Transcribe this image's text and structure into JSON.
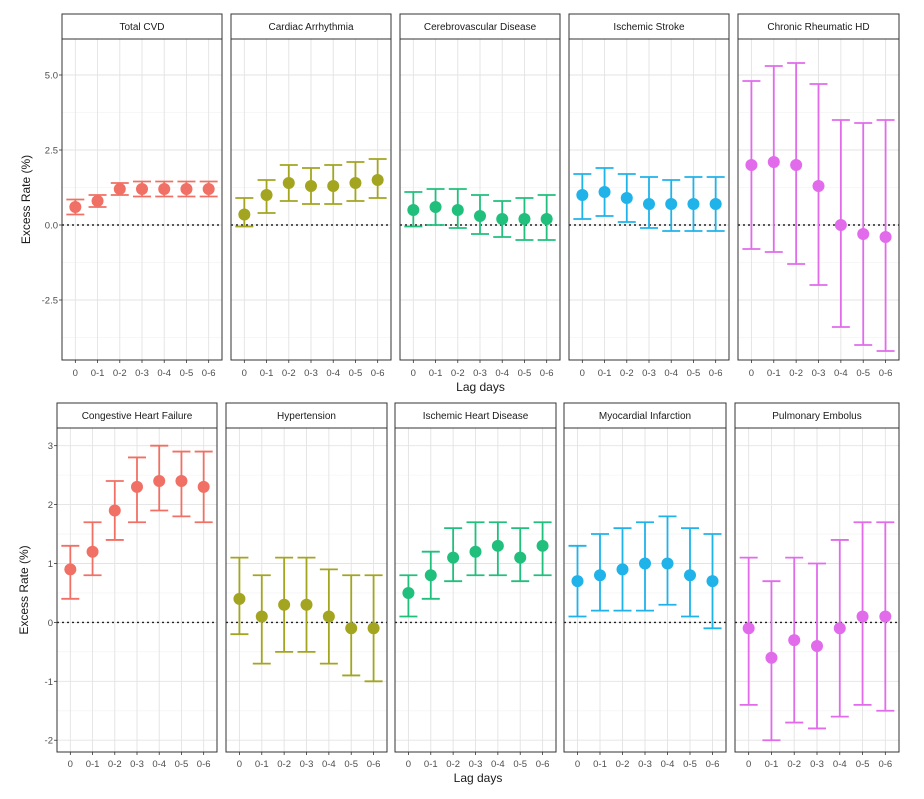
{
  "x_categories": [
    "0",
    "0-1",
    "0-2",
    "0-3",
    "0-4",
    "0-5",
    "0-6"
  ],
  "colors": {
    "red": "#F07065",
    "olive": "#A3A520",
    "green": "#21BF7C",
    "blue": "#1FB3E9",
    "magenta": "#E16BEB"
  },
  "chart_data": [
    {
      "type": "errorbar",
      "rows": [
        {
          "xlabel": "Lag days",
          "ylabel": "Excess Rate (%)",
          "ylim": [
            -4.5,
            6.2
          ],
          "yticks": [
            -2.5,
            0,
            2.5,
            5
          ],
          "ytick_labels": [
            "-2.5",
            "0.0",
            "2.5",
            "5.0"
          ],
          "panels": [
            {
              "title": "Total CVD",
              "color_key": "red",
              "points": [
                {
                  "x": "0",
                  "y": 0.6,
                  "low": 0.35,
                  "high": 0.85
                },
                {
                  "x": "0-1",
                  "y": 0.8,
                  "low": 0.6,
                  "high": 1.0
                },
                {
                  "x": "0-2",
                  "y": 1.2,
                  "low": 1.0,
                  "high": 1.4
                },
                {
                  "x": "0-3",
                  "y": 1.2,
                  "low": 0.95,
                  "high": 1.45
                },
                {
                  "x": "0-4",
                  "y": 1.2,
                  "low": 0.95,
                  "high": 1.45
                },
                {
                  "x": "0-5",
                  "y": 1.2,
                  "low": 0.95,
                  "high": 1.45
                },
                {
                  "x": "0-6",
                  "y": 1.2,
                  "low": 0.95,
                  "high": 1.45
                }
              ]
            },
            {
              "title": "Cardiac Arrhythmia",
              "color_key": "olive",
              "points": [
                {
                  "x": "0",
                  "y": 0.35,
                  "low": -0.05,
                  "high": 0.9
                },
                {
                  "x": "0-1",
                  "y": 1.0,
                  "low": 0.4,
                  "high": 1.5
                },
                {
                  "x": "0-2",
                  "y": 1.4,
                  "low": 0.8,
                  "high": 2.0
                },
                {
                  "x": "0-3",
                  "y": 1.3,
                  "low": 0.7,
                  "high": 1.9
                },
                {
                  "x": "0-4",
                  "y": 1.3,
                  "low": 0.7,
                  "high": 2.0
                },
                {
                  "x": "0-5",
                  "y": 1.4,
                  "low": 0.8,
                  "high": 2.1
                },
                {
                  "x": "0-6",
                  "y": 1.5,
                  "low": 0.9,
                  "high": 2.2
                }
              ]
            },
            {
              "title": "Cerebrovascular Disease",
              "color_key": "green",
              "points": [
                {
                  "x": "0",
                  "y": 0.5,
                  "low": -0.05,
                  "high": 1.1
                },
                {
                  "x": "0-1",
                  "y": 0.6,
                  "low": 0.0,
                  "high": 1.2
                },
                {
                  "x": "0-2",
                  "y": 0.5,
                  "low": -0.1,
                  "high": 1.2
                },
                {
                  "x": "0-3",
                  "y": 0.3,
                  "low": -0.3,
                  "high": 1.0
                },
                {
                  "x": "0-4",
                  "y": 0.2,
                  "low": -0.4,
                  "high": 0.8
                },
                {
                  "x": "0-5",
                  "y": 0.2,
                  "low": -0.5,
                  "high": 0.9
                },
                {
                  "x": "0-6",
                  "y": 0.2,
                  "low": -0.5,
                  "high": 1.0
                }
              ]
            },
            {
              "title": "Ischemic Stroke",
              "color_key": "blue",
              "points": [
                {
                  "x": "0",
                  "y": 1.0,
                  "low": 0.2,
                  "high": 1.7
                },
                {
                  "x": "0-1",
                  "y": 1.1,
                  "low": 0.3,
                  "high": 1.9
                },
                {
                  "x": "0-2",
                  "y": 0.9,
                  "low": 0.1,
                  "high": 1.7
                },
                {
                  "x": "0-3",
                  "y": 0.7,
                  "low": -0.1,
                  "high": 1.6
                },
                {
                  "x": "0-4",
                  "y": 0.7,
                  "low": -0.2,
                  "high": 1.5
                },
                {
                  "x": "0-5",
                  "y": 0.7,
                  "low": -0.2,
                  "high": 1.6
                },
                {
                  "x": "0-6",
                  "y": 0.7,
                  "low": -0.2,
                  "high": 1.6
                }
              ]
            },
            {
              "title": "Chronic Rheumatic HD",
              "color_key": "magenta",
              "points": [
                {
                  "x": "0",
                  "y": 2.0,
                  "low": -0.8,
                  "high": 4.8
                },
                {
                  "x": "0-1",
                  "y": 2.1,
                  "low": -0.9,
                  "high": 5.3
                },
                {
                  "x": "0-2",
                  "y": 2.0,
                  "low": -1.3,
                  "high": 5.4
                },
                {
                  "x": "0-3",
                  "y": 1.3,
                  "low": -2.0,
                  "high": 4.7
                },
                {
                  "x": "0-4",
                  "y": 0.0,
                  "low": -3.4,
                  "high": 3.5
                },
                {
                  "x": "0-5",
                  "y": -0.3,
                  "low": -4.0,
                  "high": 3.4
                },
                {
                  "x": "0-6",
                  "y": -0.4,
                  "low": -4.2,
                  "high": 3.5
                }
              ]
            }
          ]
        },
        {
          "xlabel": "Lag days",
          "ylabel": "Excess Rate (%)",
          "ylim": [
            -2.2,
            3.3
          ],
          "yticks": [
            -2,
            -1,
            0,
            1,
            2,
            3
          ],
          "ytick_labels": [
            "-2",
            "-1",
            "0",
            "1",
            "2",
            "3"
          ],
          "panels": [
            {
              "title": "Congestive Heart Failure",
              "color_key": "red",
              "points": [
                {
                  "x": "0",
                  "y": 0.9,
                  "low": 0.4,
                  "high": 1.3
                },
                {
                  "x": "0-1",
                  "y": 1.2,
                  "low": 0.8,
                  "high": 1.7
                },
                {
                  "x": "0-2",
                  "y": 1.9,
                  "low": 1.4,
                  "high": 2.4
                },
                {
                  "x": "0-3",
                  "y": 2.3,
                  "low": 1.7,
                  "high": 2.8
                },
                {
                  "x": "0-4",
                  "y": 2.4,
                  "low": 1.9,
                  "high": 3.0
                },
                {
                  "x": "0-5",
                  "y": 2.4,
                  "low": 1.8,
                  "high": 2.9
                },
                {
                  "x": "0-6",
                  "y": 2.3,
                  "low": 1.7,
                  "high": 2.9
                }
              ]
            },
            {
              "title": "Hypertension",
              "color_key": "olive",
              "points": [
                {
                  "x": "0",
                  "y": 0.4,
                  "low": -0.2,
                  "high": 1.1
                },
                {
                  "x": "0-1",
                  "y": 0.1,
                  "low": -0.7,
                  "high": 0.8
                },
                {
                  "x": "0-2",
                  "y": 0.3,
                  "low": -0.5,
                  "high": 1.1
                },
                {
                  "x": "0-3",
                  "y": 0.3,
                  "low": -0.5,
                  "high": 1.1
                },
                {
                  "x": "0-4",
                  "y": 0.1,
                  "low": -0.7,
                  "high": 0.9
                },
                {
                  "x": "0-5",
                  "y": -0.1,
                  "low": -0.9,
                  "high": 0.8
                },
                {
                  "x": "0-6",
                  "y": -0.1,
                  "low": -1.0,
                  "high": 0.8
                }
              ]
            },
            {
              "title": "Ischemic Heart Disease",
              "color_key": "green",
              "points": [
                {
                  "x": "0",
                  "y": 0.5,
                  "low": 0.1,
                  "high": 0.8
                },
                {
                  "x": "0-1",
                  "y": 0.8,
                  "low": 0.4,
                  "high": 1.2
                },
                {
                  "x": "0-2",
                  "y": 1.1,
                  "low": 0.7,
                  "high": 1.6
                },
                {
                  "x": "0-3",
                  "y": 1.2,
                  "low": 0.8,
                  "high": 1.7
                },
                {
                  "x": "0-4",
                  "y": 1.3,
                  "low": 0.8,
                  "high": 1.7
                },
                {
                  "x": "0-5",
                  "y": 1.1,
                  "low": 0.7,
                  "high": 1.6
                },
                {
                  "x": "0-6",
                  "y": 1.3,
                  "low": 0.8,
                  "high": 1.7
                }
              ]
            },
            {
              "title": "Myocardial Infarction",
              "color_key": "blue",
              "points": [
                {
                  "x": "0",
                  "y": 0.7,
                  "low": 0.1,
                  "high": 1.3
                },
                {
                  "x": "0-1",
                  "y": 0.8,
                  "low": 0.2,
                  "high": 1.5
                },
                {
                  "x": "0-2",
                  "y": 0.9,
                  "low": 0.2,
                  "high": 1.6
                },
                {
                  "x": "0-3",
                  "y": 1.0,
                  "low": 0.2,
                  "high": 1.7
                },
                {
                  "x": "0-4",
                  "y": 1.0,
                  "low": 0.3,
                  "high": 1.8
                },
                {
                  "x": "0-5",
                  "y": 0.8,
                  "low": 0.1,
                  "high": 1.6
                },
                {
                  "x": "0-6",
                  "y": 0.7,
                  "low": -0.1,
                  "high": 1.5
                }
              ]
            },
            {
              "title": "Pulmonary Embolus",
              "color_key": "magenta",
              "points": [
                {
                  "x": "0",
                  "y": -0.1,
                  "low": -1.4,
                  "high": 1.1
                },
                {
                  "x": "0-1",
                  "y": -0.6,
                  "low": -2.0,
                  "high": 0.7
                },
                {
                  "x": "0-2",
                  "y": -0.3,
                  "low": -1.7,
                  "high": 1.1
                },
                {
                  "x": "0-3",
                  "y": -0.4,
                  "low": -1.8,
                  "high": 1.0
                },
                {
                  "x": "0-4",
                  "y": -0.1,
                  "low": -1.6,
                  "high": 1.4
                },
                {
                  "x": "0-5",
                  "y": 0.1,
                  "low": -1.4,
                  "high": 1.7
                },
                {
                  "x": "0-6",
                  "y": 0.1,
                  "low": -1.5,
                  "high": 1.7
                }
              ]
            }
          ]
        }
      ]
    }
  ]
}
